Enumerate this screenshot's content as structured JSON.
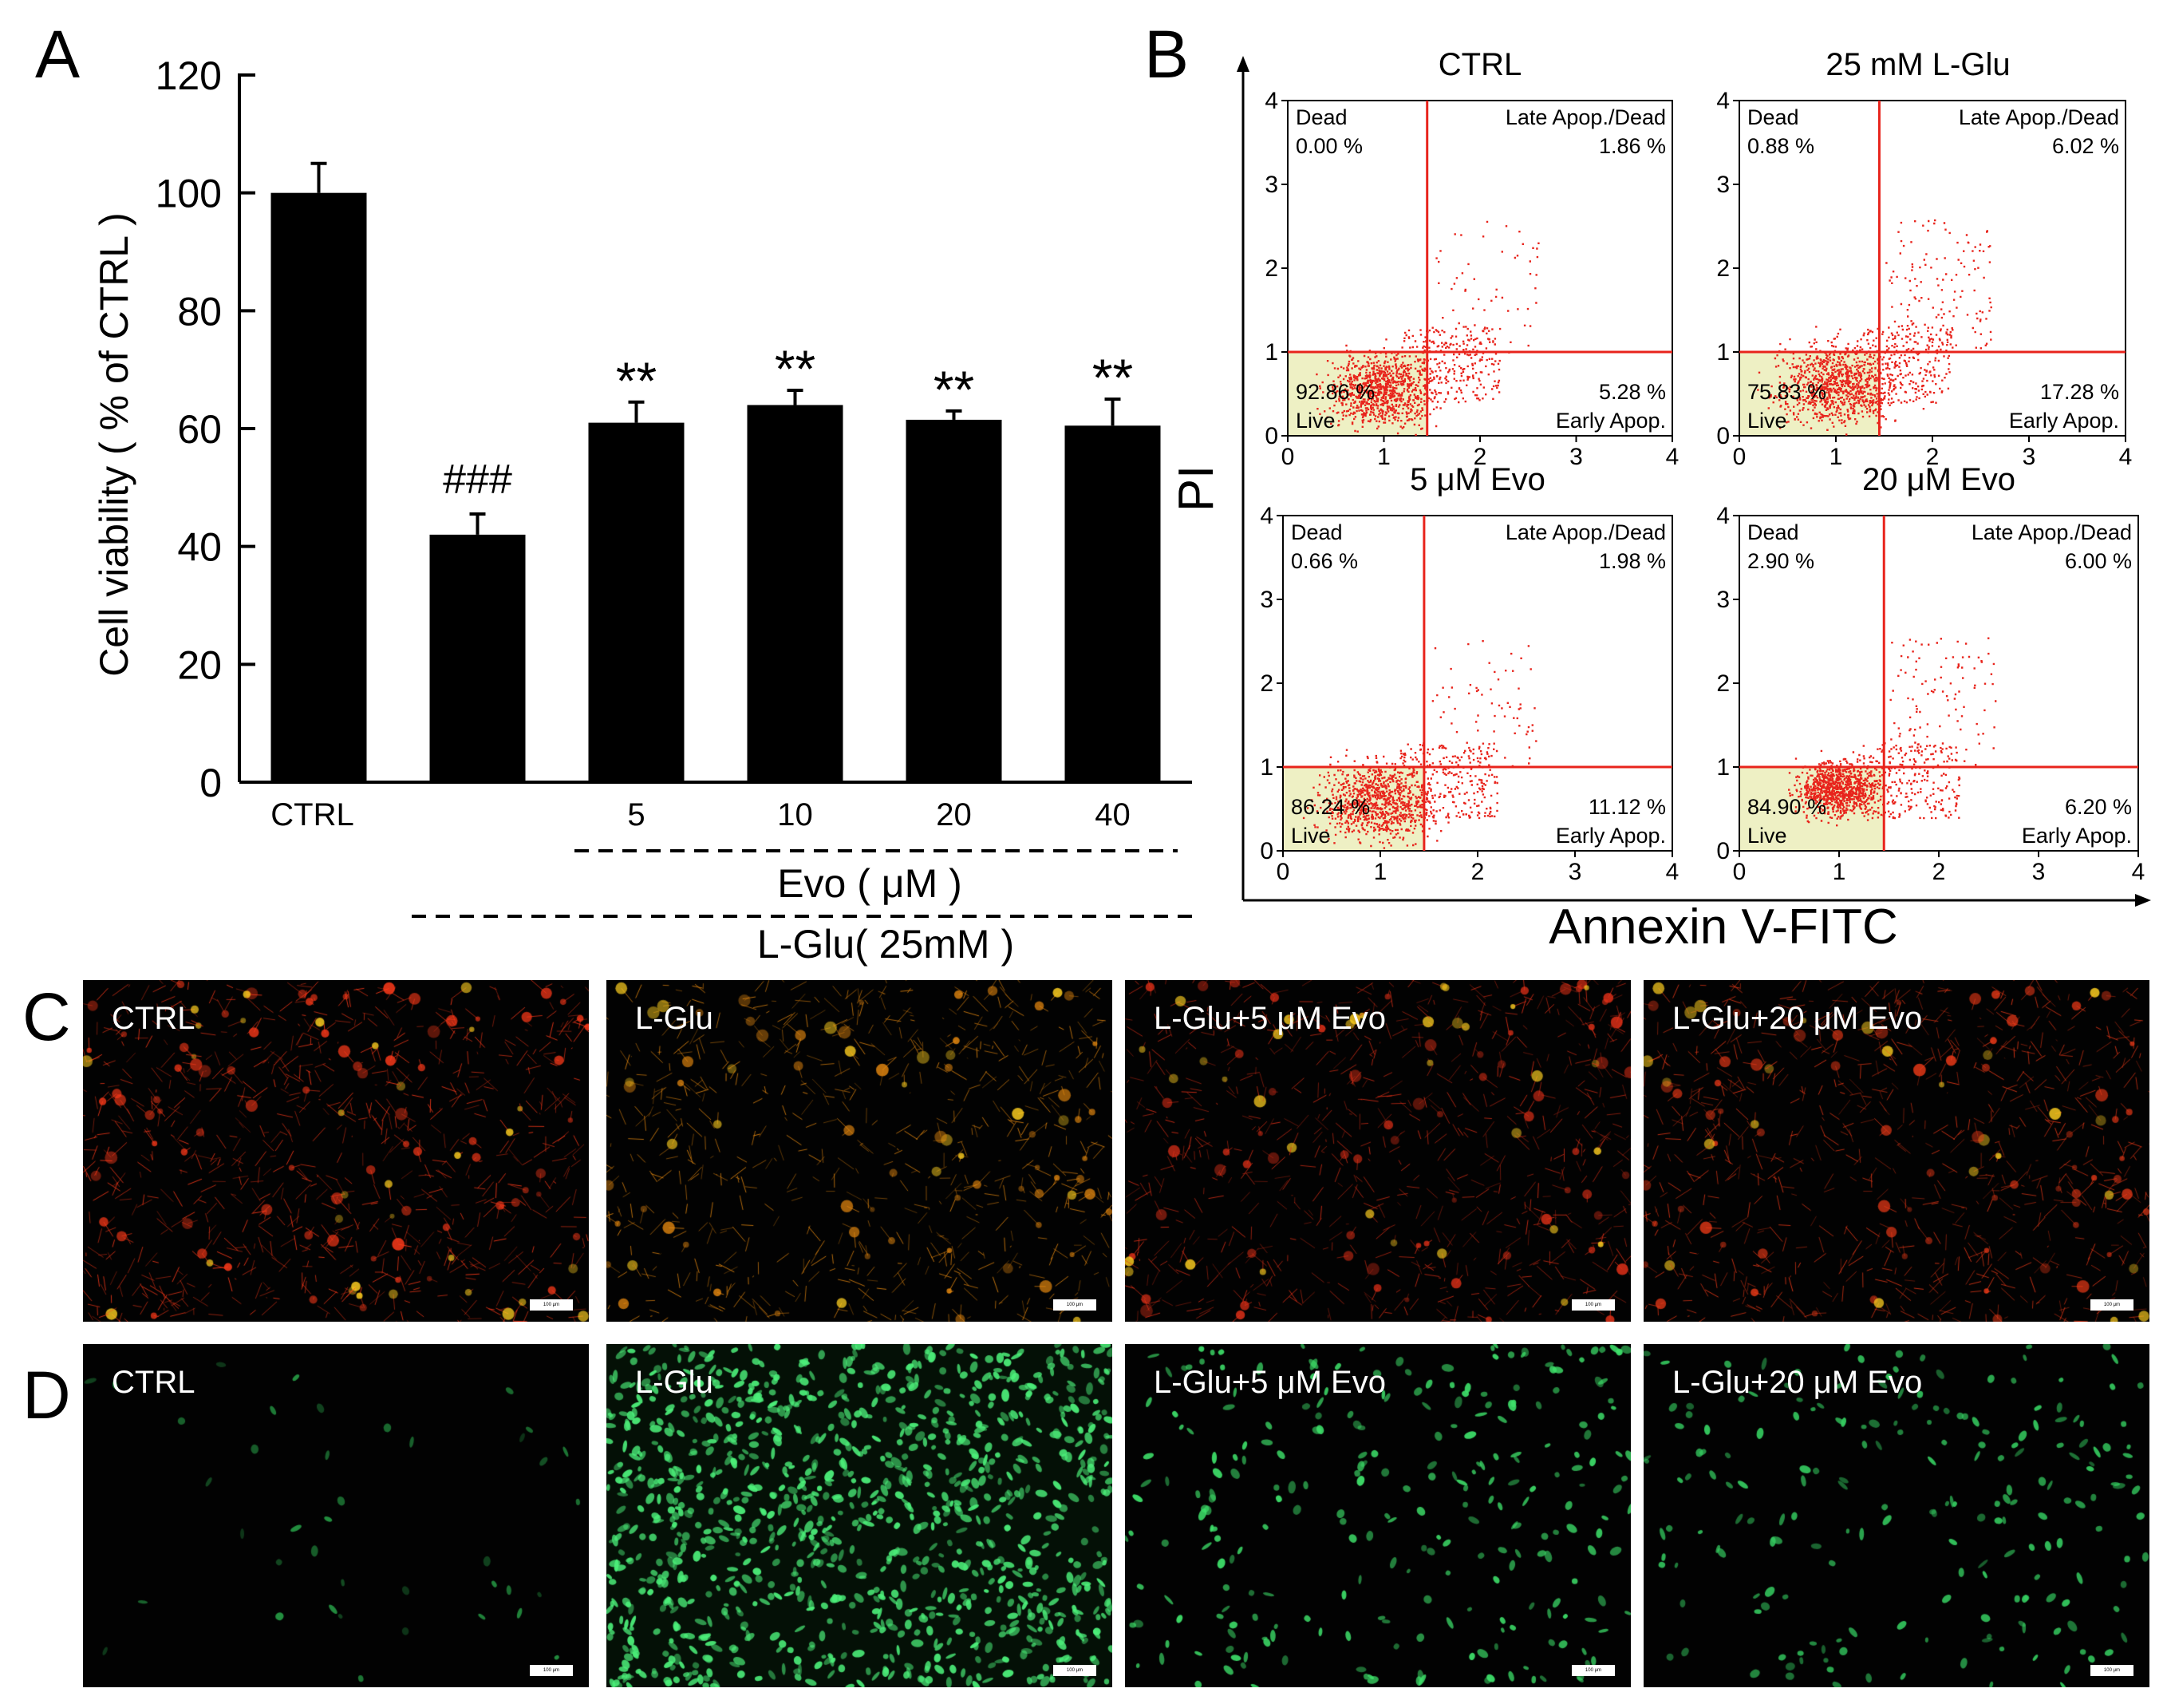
{
  "panel_letters": {
    "a": "A",
    "b": "B",
    "c": "C",
    "d": "D"
  },
  "chart_data": [
    {
      "type": "bar",
      "panel": "A",
      "ylabel": "Cell viability ( % of CTRL )",
      "ylim": [
        0,
        120
      ],
      "yticks": [
        0,
        20,
        40,
        60,
        80,
        100,
        120
      ],
      "categories": [
        "CTRL",
        "",
        "5",
        "10",
        "20",
        "40"
      ],
      "values": [
        100,
        42,
        61,
        64,
        61.5,
        60.5
      ],
      "errors": [
        5,
        3.5,
        3.5,
        2.5,
        1.5,
        4.5
      ],
      "annotations": [
        "",
        "###",
        "**",
        "**",
        "**",
        "**"
      ],
      "group_labels": {
        "evo": "Evo ( μM )",
        "lglu": "L-Glu( 25mM )"
      },
      "bar_color": "#000000"
    },
    {
      "type": "scatter",
      "panel": "B",
      "xlabel": "Annexin V-FITC",
      "ylabel": "PI",
      "xlim": [
        0,
        4
      ],
      "ylim": [
        0,
        4
      ],
      "ticks": [
        "0",
        "1",
        "2",
        "3",
        "4"
      ],
      "gate": {
        "x": 1.45,
        "y": 1.0
      },
      "quadrant_names": {
        "dead": "Dead",
        "late": "Late Apop./Dead",
        "live": "Live",
        "early": "Early Apop."
      },
      "plots": [
        {
          "title": "CTRL",
          "dead": "0.00 %",
          "late": "1.86 %",
          "live": "92.86 %",
          "early": "5.28 %"
        },
        {
          "title": "25 mM L-Glu",
          "dead": "0.88 %",
          "late": "6.02 %",
          "live": "75.83 %",
          "early": "17.28 %"
        },
        {
          "title": "5 μM Evo",
          "dead": "0.66 %",
          "late": "1.98 %",
          "live": "86.24 %",
          "early": "11.12 %"
        },
        {
          "title": "20 μM Evo",
          "dead": "2.90 %",
          "late": "6.00 %",
          "live": "84.90 %",
          "early": "6.20 %"
        }
      ],
      "point_color": "#e8241c"
    }
  ],
  "panel_c": {
    "labels": [
      "CTRL",
      "L-Glu",
      "L-Glu+5 μM Evo",
      "L-Glu+20 μM Evo"
    ],
    "colors": [
      "#ff3a1a",
      "#e88a10",
      "#e03018",
      "#ee3a18"
    ]
  },
  "panel_d": {
    "labels": [
      "CTRL",
      "L-Glu",
      "L-Glu+5 μM Evo",
      "L-Glu+20 μM Evo"
    ],
    "colors": [
      "#2fbf55",
      "#4cf07a",
      "#3ee06a",
      "#35cc60"
    ]
  },
  "scale_bar": "100 μm"
}
